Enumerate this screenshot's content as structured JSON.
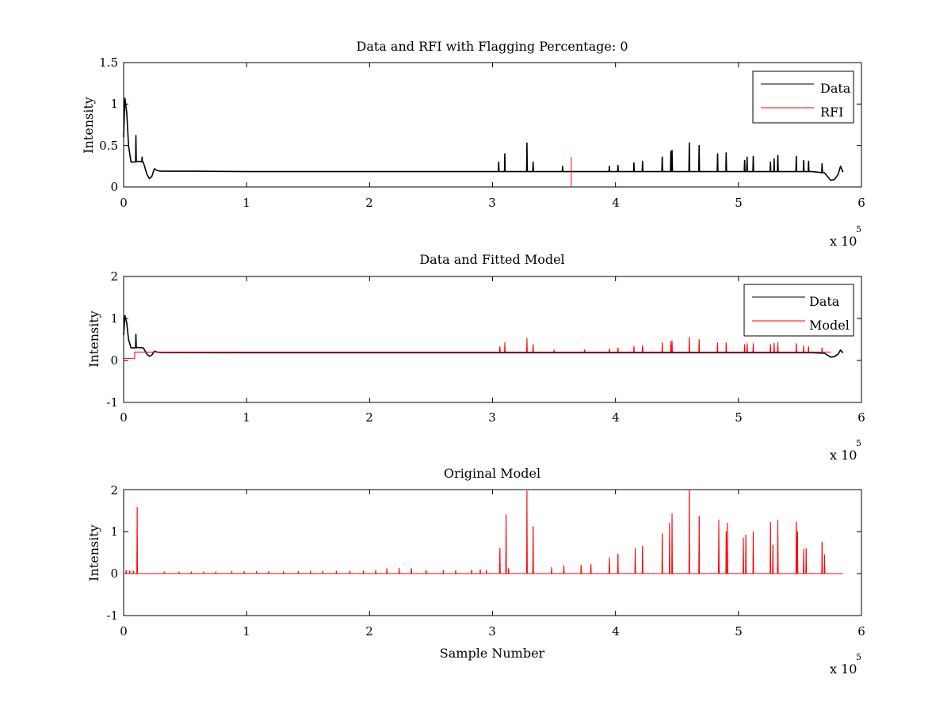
{
  "chart_data": [
    {
      "type": "line",
      "title": "Data and RFI with Flagging Percentage: 0",
      "xlabel": "",
      "ylabel": "Intensity",
      "xlim": [
        0,
        600000
      ],
      "ylim": [
        0,
        1.5
      ],
      "xticks": [
        0,
        100000,
        200000,
        300000,
        400000,
        500000,
        600000
      ],
      "xtick_labels": [
        "0",
        "1",
        "2",
        "3",
        "4",
        "5",
        "6"
      ],
      "yticks": [
        0,
        0.5,
        1,
        1.5
      ],
      "ytick_labels": [
        "0",
        "0.5",
        "1",
        "1.5"
      ],
      "x_multiplier": {
        "base": "x 10",
        "exponent": "5"
      },
      "legend": {
        "placement": "top-right",
        "entries": [
          {
            "label": "Data",
            "color": "#000000"
          },
          {
            "label": "RFI",
            "color": "#ff0000"
          }
        ]
      },
      "series": [
        {
          "name": "Data",
          "color": "#000000",
          "baseline": {
            "x": [
              0,
              1000,
              2500,
              4000,
              6000,
              9000,
              12000,
              16000,
              19000,
              21000,
              23000,
              25000,
              27000,
              30000,
              60000,
              100000,
              200000,
              300000,
              400000,
              500000,
              560000,
              570000,
              575000,
              578000,
              581000,
              583000,
              585000
            ],
            "y": [
              0.6,
              1.07,
              0.9,
              0.5,
              0.3,
              0.3,
              0.31,
              0.3,
              0.15,
              0.1,
              0.13,
              0.22,
              0.2,
              0.19,
              0.19,
              0.185,
              0.185,
              0.185,
              0.185,
              0.185,
              0.185,
              0.17,
              0.08,
              0.09,
              0.15,
              0.25,
              0.18
            ]
          },
          "spikes": [
            {
              "x": 10000,
              "y": 0.62
            },
            {
              "x": 15000,
              "y": 0.36
            },
            {
              "x": 305000,
              "y": 0.3
            },
            {
              "x": 310000,
              "y": 0.4
            },
            {
              "x": 328000,
              "y": 0.53
            },
            {
              "x": 333000,
              "y": 0.3
            },
            {
              "x": 357000,
              "y": 0.25
            },
            {
              "x": 395000,
              "y": 0.25
            },
            {
              "x": 402000,
              "y": 0.26
            },
            {
              "x": 415000,
              "y": 0.29
            },
            {
              "x": 422000,
              "y": 0.31
            },
            {
              "x": 438000,
              "y": 0.36
            },
            {
              "x": 445000,
              "y": 0.43
            },
            {
              "x": 446000,
              "y": 0.44
            },
            {
              "x": 460000,
              "y": 0.53
            },
            {
              "x": 468000,
              "y": 0.5
            },
            {
              "x": 483000,
              "y": 0.4
            },
            {
              "x": 490000,
              "y": 0.41
            },
            {
              "x": 505000,
              "y": 0.32
            },
            {
              "x": 507000,
              "y": 0.36
            },
            {
              "x": 512000,
              "y": 0.37
            },
            {
              "x": 526000,
              "y": 0.3
            },
            {
              "x": 529000,
              "y": 0.34
            },
            {
              "x": 532000,
              "y": 0.38
            },
            {
              "x": 547000,
              "y": 0.37
            },
            {
              "x": 553000,
              "y": 0.32
            },
            {
              "x": 557000,
              "y": 0.31
            },
            {
              "x": 568000,
              "y": 0.28
            }
          ]
        },
        {
          "name": "RFI",
          "color": "#ff0000",
          "spikes": [
            {
              "x": 364000,
              "y": 0.36
            }
          ]
        }
      ]
    },
    {
      "type": "line",
      "title": "Data and Fitted Model",
      "xlabel": "",
      "ylabel": "Intensity",
      "xlim": [
        0,
        600000
      ],
      "ylim": [
        -1,
        2
      ],
      "xticks": [
        0,
        100000,
        200000,
        300000,
        400000,
        500000,
        600000
      ],
      "xtick_labels": [
        "0",
        "1",
        "2",
        "3",
        "4",
        "5",
        "6"
      ],
      "yticks": [
        -1,
        0,
        1,
        2
      ],
      "ytick_labels": [
        "-1",
        "0",
        "1",
        "2"
      ],
      "x_multiplier": {
        "base": "x 10",
        "exponent": "5"
      },
      "legend": {
        "placement": "top-right",
        "entries": [
          {
            "label": "Data",
            "color": "#000000"
          },
          {
            "label": "Model",
            "color": "#ff0000"
          }
        ]
      },
      "series": [
        {
          "name": "Data",
          "color": "#000000",
          "baseline": {
            "x": [
              0,
              1000,
              2500,
              4000,
              6000,
              9000,
              12000,
              16000,
              19000,
              21000,
              23000,
              25000,
              27000,
              30000,
              100000,
              300000,
              500000,
              560000,
              570000,
              575000,
              578000,
              581000,
              583000,
              585000
            ],
            "y": [
              0.6,
              1.07,
              0.9,
              0.5,
              0.3,
              0.3,
              0.31,
              0.3,
              0.15,
              0.1,
              0.13,
              0.22,
              0.2,
              0.19,
              0.185,
              0.185,
              0.185,
              0.185,
              0.17,
              0.08,
              0.09,
              0.15,
              0.25,
              0.18
            ]
          },
          "spikes": [
            {
              "x": 10000,
              "y": 0.62
            }
          ]
        },
        {
          "name": "Model",
          "color": "#ff0000",
          "baseline": {
            "x": [
              0,
              9000,
              9001,
              575000
            ],
            "y": [
              0.05,
              0.05,
              0.2,
              0.2
            ]
          },
          "spikes": [
            {
              "x": 306000,
              "y": 0.33
            },
            {
              "x": 310000,
              "y": 0.43
            },
            {
              "x": 328000,
              "y": 0.53
            },
            {
              "x": 333000,
              "y": 0.38
            },
            {
              "x": 350000,
              "y": 0.25
            },
            {
              "x": 375000,
              "y": 0.26
            },
            {
              "x": 395000,
              "y": 0.28
            },
            {
              "x": 402000,
              "y": 0.3
            },
            {
              "x": 415000,
              "y": 0.34
            },
            {
              "x": 422000,
              "y": 0.35
            },
            {
              "x": 438000,
              "y": 0.42
            },
            {
              "x": 445000,
              "y": 0.46
            },
            {
              "x": 446000,
              "y": 0.47
            },
            {
              "x": 460000,
              "y": 0.55
            },
            {
              "x": 468000,
              "y": 0.5
            },
            {
              "x": 483000,
              "y": 0.42
            },
            {
              "x": 490000,
              "y": 0.42
            },
            {
              "x": 505000,
              "y": 0.38
            },
            {
              "x": 507000,
              "y": 0.4
            },
            {
              "x": 512000,
              "y": 0.4
            },
            {
              "x": 526000,
              "y": 0.38
            },
            {
              "x": 529000,
              "y": 0.41
            },
            {
              "x": 532000,
              "y": 0.43
            },
            {
              "x": 547000,
              "y": 0.4
            },
            {
              "x": 553000,
              "y": 0.35
            },
            {
              "x": 557000,
              "y": 0.33
            },
            {
              "x": 568000,
              "y": 0.3
            }
          ]
        }
      ]
    },
    {
      "type": "line",
      "title": "Original Model",
      "xlabel": "Sample Number",
      "ylabel": "Intensity",
      "xlim": [
        0,
        600000
      ],
      "ylim": [
        -1,
        2
      ],
      "xticks": [
        0,
        100000,
        200000,
        300000,
        400000,
        500000,
        600000
      ],
      "xtick_labels": [
        "0",
        "1",
        "2",
        "3",
        "4",
        "5",
        "6"
      ],
      "yticks": [
        -1,
        0,
        1,
        2
      ],
      "ytick_labels": [
        "-1",
        "0",
        "1",
        "2"
      ],
      "x_multiplier": {
        "base": "x 10",
        "exponent": "5"
      },
      "series": [
        {
          "color": "#ff0000",
          "baseline": {
            "x": [
              0,
              585000
            ],
            "y": [
              0,
              0
            ]
          },
          "spikes": [
            {
              "x": 2000,
              "y": 0.08
            },
            {
              "x": 5000,
              "y": 0.07
            },
            {
              "x": 8000,
              "y": 0.06
            },
            {
              "x": 11000,
              "y": 1.58
            },
            {
              "x": 33000,
              "y": 0.04
            },
            {
              "x": 45000,
              "y": 0.04
            },
            {
              "x": 55000,
              "y": 0.04
            },
            {
              "x": 65000,
              "y": 0.04
            },
            {
              "x": 75000,
              "y": 0.04
            },
            {
              "x": 88000,
              "y": 0.05
            },
            {
              "x": 98000,
              "y": 0.05
            },
            {
              "x": 108000,
              "y": 0.05
            },
            {
              "x": 118000,
              "y": 0.05
            },
            {
              "x": 130000,
              "y": 0.05
            },
            {
              "x": 142000,
              "y": 0.05
            },
            {
              "x": 152000,
              "y": 0.06
            },
            {
              "x": 162000,
              "y": 0.06
            },
            {
              "x": 173000,
              "y": 0.06
            },
            {
              "x": 184000,
              "y": 0.06
            },
            {
              "x": 195000,
              "y": 0.07
            },
            {
              "x": 205000,
              "y": 0.08
            },
            {
              "x": 214000,
              "y": 0.12
            },
            {
              "x": 224000,
              "y": 0.13
            },
            {
              "x": 234000,
              "y": 0.12
            },
            {
              "x": 246000,
              "y": 0.08
            },
            {
              "x": 260000,
              "y": 0.08
            },
            {
              "x": 270000,
              "y": 0.08
            },
            {
              "x": 283000,
              "y": 0.09
            },
            {
              "x": 290000,
              "y": 0.1
            },
            {
              "x": 295000,
              "y": 0.08
            },
            {
              "x": 306000,
              "y": 0.6
            },
            {
              "x": 311000,
              "y": 1.4
            },
            {
              "x": 313000,
              "y": 0.12
            },
            {
              "x": 328000,
              "y": 1.97
            },
            {
              "x": 333000,
              "y": 1.12
            },
            {
              "x": 348000,
              "y": 0.15
            },
            {
              "x": 358000,
              "y": 0.19
            },
            {
              "x": 372000,
              "y": 0.2
            },
            {
              "x": 380000,
              "y": 0.22
            },
            {
              "x": 395000,
              "y": 0.38
            },
            {
              "x": 402000,
              "y": 0.47
            },
            {
              "x": 416000,
              "y": 0.6
            },
            {
              "x": 422000,
              "y": 0.65
            },
            {
              "x": 438000,
              "y": 0.95
            },
            {
              "x": 444000,
              "y": 1.2
            },
            {
              "x": 446000,
              "y": 1.43
            },
            {
              "x": 460000,
              "y": 1.98
            },
            {
              "x": 468000,
              "y": 1.37
            },
            {
              "x": 484000,
              "y": 1.28
            },
            {
              "x": 490000,
              "y": 1.0
            },
            {
              "x": 491000,
              "y": 1.2
            },
            {
              "x": 504000,
              "y": 0.85
            },
            {
              "x": 506000,
              "y": 0.92
            },
            {
              "x": 512000,
              "y": 1.0
            },
            {
              "x": 526000,
              "y": 1.22
            },
            {
              "x": 528000,
              "y": 0.68
            },
            {
              "x": 532000,
              "y": 1.28
            },
            {
              "x": 547000,
              "y": 1.22
            },
            {
              "x": 548000,
              "y": 1.0
            },
            {
              "x": 553000,
              "y": 0.58
            },
            {
              "x": 555000,
              "y": 0.6
            },
            {
              "x": 568000,
              "y": 0.75
            },
            {
              "x": 570000,
              "y": 0.45
            }
          ]
        }
      ]
    }
  ]
}
